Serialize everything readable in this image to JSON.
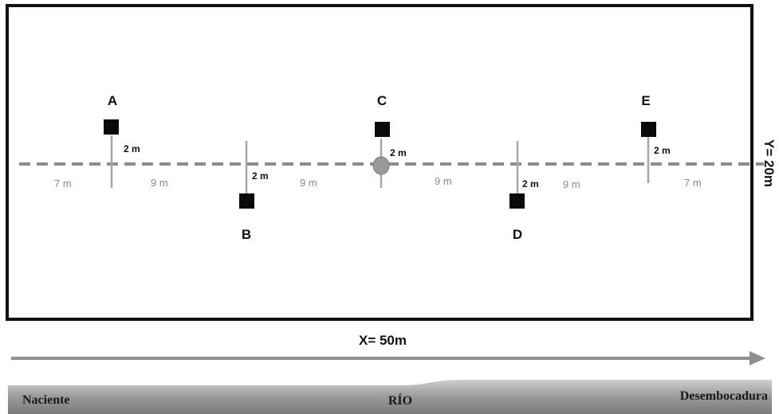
{
  "plots": [
    {
      "label": "A",
      "side": "above"
    },
    {
      "label": "B",
      "side": "below"
    },
    {
      "label": "C",
      "side": "above"
    },
    {
      "label": "D",
      "side": "below"
    },
    {
      "label": "E",
      "side": "above"
    }
  ],
  "plot_offset_label": "2 m",
  "gap_labels": [
    "7 m",
    "9 m",
    "9 m",
    "9 m",
    "9 m",
    "7 m"
  ],
  "dimensions": {
    "x_label": "X= 50m",
    "y_label": "Y= 20m"
  },
  "river": {
    "source_label": "Naciente",
    "name_label": "RÍO",
    "mouth_label": "Desembocadura"
  },
  "colors": {
    "frame": "#111111",
    "centerline": "#8c8c8c",
    "plot_fill": "#0a0a0a",
    "arrow": "#8f8f8f",
    "river_band": "#8a8a8a",
    "center_marker": "#9a9a9a"
  }
}
